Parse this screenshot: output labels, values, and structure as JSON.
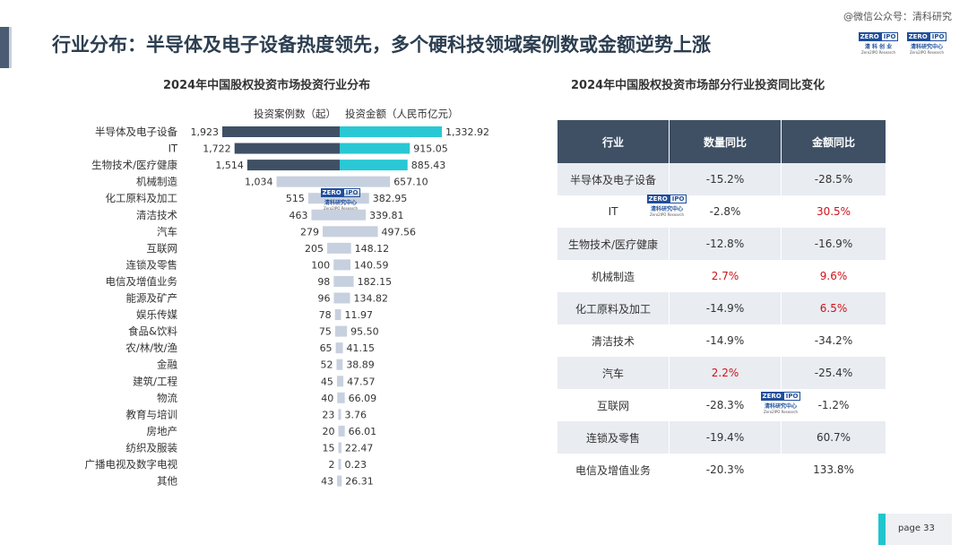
{
  "page_title": "行业分布：半导体及电子设备热度领先，多个硬科技领域案例数或金额逆势上涨",
  "watermark": "@微信公众号：清科研究",
  "logo": {
    "zero": "ZERO",
    "ipo": "IPO",
    "cn_a": "清 科 创 业",
    "cn_b": "清科研究中心",
    "en_b": "Zero2IPO Research"
  },
  "colors": {
    "count_bar": "#3f5065",
    "amount_bar": "#29c8d4",
    "minor_bar": "#c7d0de",
    "positive": "#d0121b",
    "header": "#3f5065"
  },
  "left_chart_title": "2024年中国股权投资市场投资行业分布",
  "right_table_title": "2024年中国股权投资市场部分行业投资同比变化",
  "chart_data": {
    "type": "bar",
    "layout": "butterfly",
    "legend": {
      "left": "投资案例数（起）",
      "right": "投资金额（人民币亿元）"
    },
    "categories": [
      "半导体及电子设备",
      "IT",
      "生物技术/医疗健康",
      "机械制造",
      "化工原料及加工",
      "清洁技术",
      "汽车",
      "互联网",
      "连锁及零售",
      "电信及增值业务",
      "能源及矿产",
      "娱乐传媒",
      "食品&饮料",
      "农/林/牧/渔",
      "金融",
      "建筑/工程",
      "物流",
      "教育与培训",
      "房地产",
      "纺织及服装",
      "广播电视及数字电视",
      "其他"
    ],
    "series": [
      {
        "name": "投资案例数（起）",
        "values": [
          1923,
          1722,
          1514,
          1034,
          515,
          463,
          279,
          205,
          100,
          98,
          96,
          78,
          75,
          65,
          52,
          45,
          40,
          23,
          20,
          15,
          2,
          43
        ],
        "labels": [
          "1,923",
          "1,722",
          "1,514",
          "1,034",
          "515",
          "463",
          "279",
          "205",
          "100",
          "98",
          "96",
          "78",
          "75",
          "65",
          "52",
          "45",
          "40",
          "23",
          "20",
          "15",
          "2",
          "43"
        ]
      },
      {
        "name": "投资金额（人民币亿元）",
        "values": [
          1332.92,
          915.05,
          885.43,
          657.1,
          382.95,
          339.81,
          497.56,
          148.12,
          140.59,
          182.15,
          134.82,
          11.97,
          95.5,
          41.15,
          38.89,
          47.57,
          66.09,
          3.76,
          66.01,
          22.47,
          0.23,
          26.31
        ],
        "labels": [
          "1,332.92",
          "915.05",
          "885.43",
          "657.10",
          "382.95",
          "339.81",
          "497.56",
          "148.12",
          "140.59",
          "182.15",
          "134.82",
          "11.97",
          "95.50",
          "41.15",
          "38.89",
          "47.57",
          "66.09",
          "3.76",
          "66.01",
          "22.47",
          "0.23",
          "26.31"
        ]
      }
    ],
    "highlight_top": 3
  },
  "table": {
    "headers": [
      "行业",
      "数量同比",
      "金额同比"
    ],
    "rows": [
      {
        "industry": "半导体及电子设备",
        "count_yoy": "-15.2%",
        "amount_yoy": "-28.5%",
        "count_pos": false,
        "amount_pos": false
      },
      {
        "industry": "IT",
        "count_yoy": "-2.8%",
        "amount_yoy": "30.5%",
        "count_pos": false,
        "amount_pos": true
      },
      {
        "industry": "生物技术/医疗健康",
        "count_yoy": "-12.8%",
        "amount_yoy": "-16.9%",
        "count_pos": false,
        "amount_pos": false
      },
      {
        "industry": "机械制造",
        "count_yoy": "2.7%",
        "amount_yoy": "9.6%",
        "count_pos": true,
        "amount_pos": true
      },
      {
        "industry": "化工原料及加工",
        "count_yoy": "-14.9%",
        "amount_yoy": "6.5%",
        "count_pos": false,
        "amount_pos": true
      },
      {
        "industry": "清洁技术",
        "count_yoy": "-14.9%",
        "amount_yoy": "-34.2%",
        "count_pos": false,
        "amount_pos": false
      },
      {
        "industry": "汽车",
        "count_yoy": "2.2%",
        "amount_yoy": "-25.4%",
        "count_pos": true,
        "amount_pos": false
      },
      {
        "industry": "互联网",
        "count_yoy": "-28.3%",
        "amount_yoy": "-1.2%",
        "count_pos": false,
        "amount_pos": false
      },
      {
        "industry": "连锁及零售",
        "count_yoy": "-19.4%",
        "amount_yoy": "60.7%",
        "count_pos": false,
        "amount_pos": false
      },
      {
        "industry": "电信及增值业务",
        "count_yoy": "-20.3%",
        "amount_yoy": "133.8%",
        "count_pos": false,
        "amount_pos": false
      }
    ]
  },
  "footer": {
    "page_label": "page  33"
  }
}
